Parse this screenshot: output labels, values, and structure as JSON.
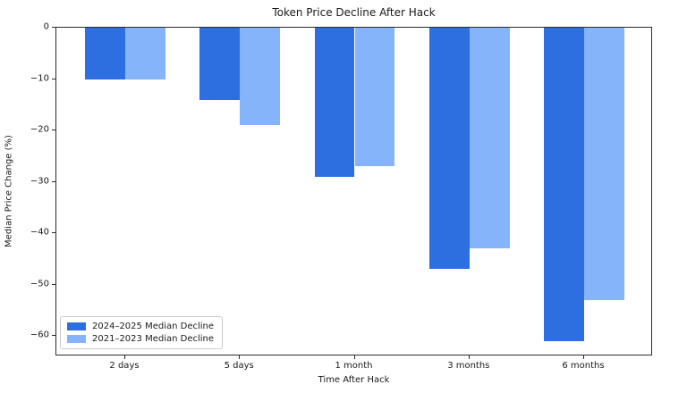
{
  "chart_data": {
    "type": "bar",
    "title": "Token Price Decline After Hack",
    "xlabel": "Time After Hack",
    "ylabel": "Median Price Change (%)",
    "categories": [
      "2 days",
      "5 days",
      "1 month",
      "3 months",
      "6 months"
    ],
    "series": [
      {
        "name": "2024–2025 Median Decline",
        "color": "#2d6ee0",
        "values": [
          -10,
          -14,
          -29,
          -47,
          -61
        ]
      },
      {
        "name": "2021–2023 Median Decline",
        "color": "#85b4fa",
        "values": [
          -10,
          -19,
          -27,
          -43,
          -53
        ]
      }
    ],
    "ylim": [
      -64,
      0
    ],
    "yticks": [
      0,
      -10,
      -20,
      -30,
      -40,
      -50,
      -60
    ],
    "ytick_labels": [
      "0",
      "−10",
      "−20",
      "−30",
      "−40",
      "−50",
      "−60"
    ],
    "xlim": [
      -0.6,
      4.6
    ],
    "bar_width": 0.35,
    "legend_position": "lower left",
    "grid": false,
    "axis_color": "#2b2b2b",
    "text_color": "#1a1a1a",
    "background": "#ffffff"
  }
}
